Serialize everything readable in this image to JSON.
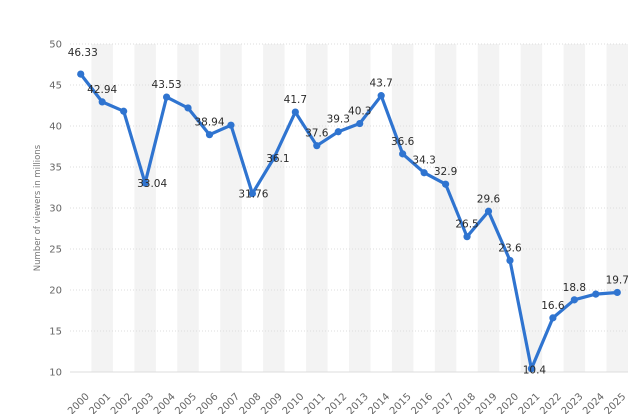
{
  "chart_data": {
    "type": "line",
    "ylabel": "Number of viewers in millions",
    "ylim": [
      10,
      50
    ],
    "yticks": [
      10,
      15,
      20,
      25,
      30,
      35,
      40,
      45,
      50
    ],
    "grid": true,
    "legend": "none",
    "categories": [
      "2000",
      "2001",
      "2002",
      "2003",
      "2004",
      "2005",
      "2006",
      "2007",
      "2008",
      "2009",
      "2010",
      "2011",
      "2012",
      "2013",
      "2014",
      "2015",
      "2016",
      "2017",
      "2018",
      "2019",
      "2020",
      "2021",
      "2022",
      "2023",
      "2024",
      "2025"
    ],
    "values": [
      46.33,
      42.94,
      41.8,
      33.04,
      43.53,
      42.2,
      38.94,
      40.1,
      31.76,
      36.1,
      41.7,
      37.6,
      39.3,
      40.3,
      43.7,
      36.6,
      34.3,
      32.9,
      26.5,
      29.6,
      23.6,
      10.4,
      16.6,
      18.8,
      19.5,
      19.7
    ],
    "data_labels": [
      "46.33",
      "42.94",
      "",
      "33.04",
      "43.53",
      "",
      "38.94",
      "",
      "31.76",
      "36.1",
      "41.7",
      "37.6",
      "39.3",
      "40.3",
      "43.7",
      "36.6",
      "34.3",
      "32.9",
      "26.5",
      "29.6",
      "23.6",
      "10.4",
      "16.6",
      "18.8",
      "",
      "19.7"
    ],
    "colors": {
      "line": "#2f74d0",
      "grid": "#dcdcdc",
      "band": "#f3f3f3"
    }
  }
}
